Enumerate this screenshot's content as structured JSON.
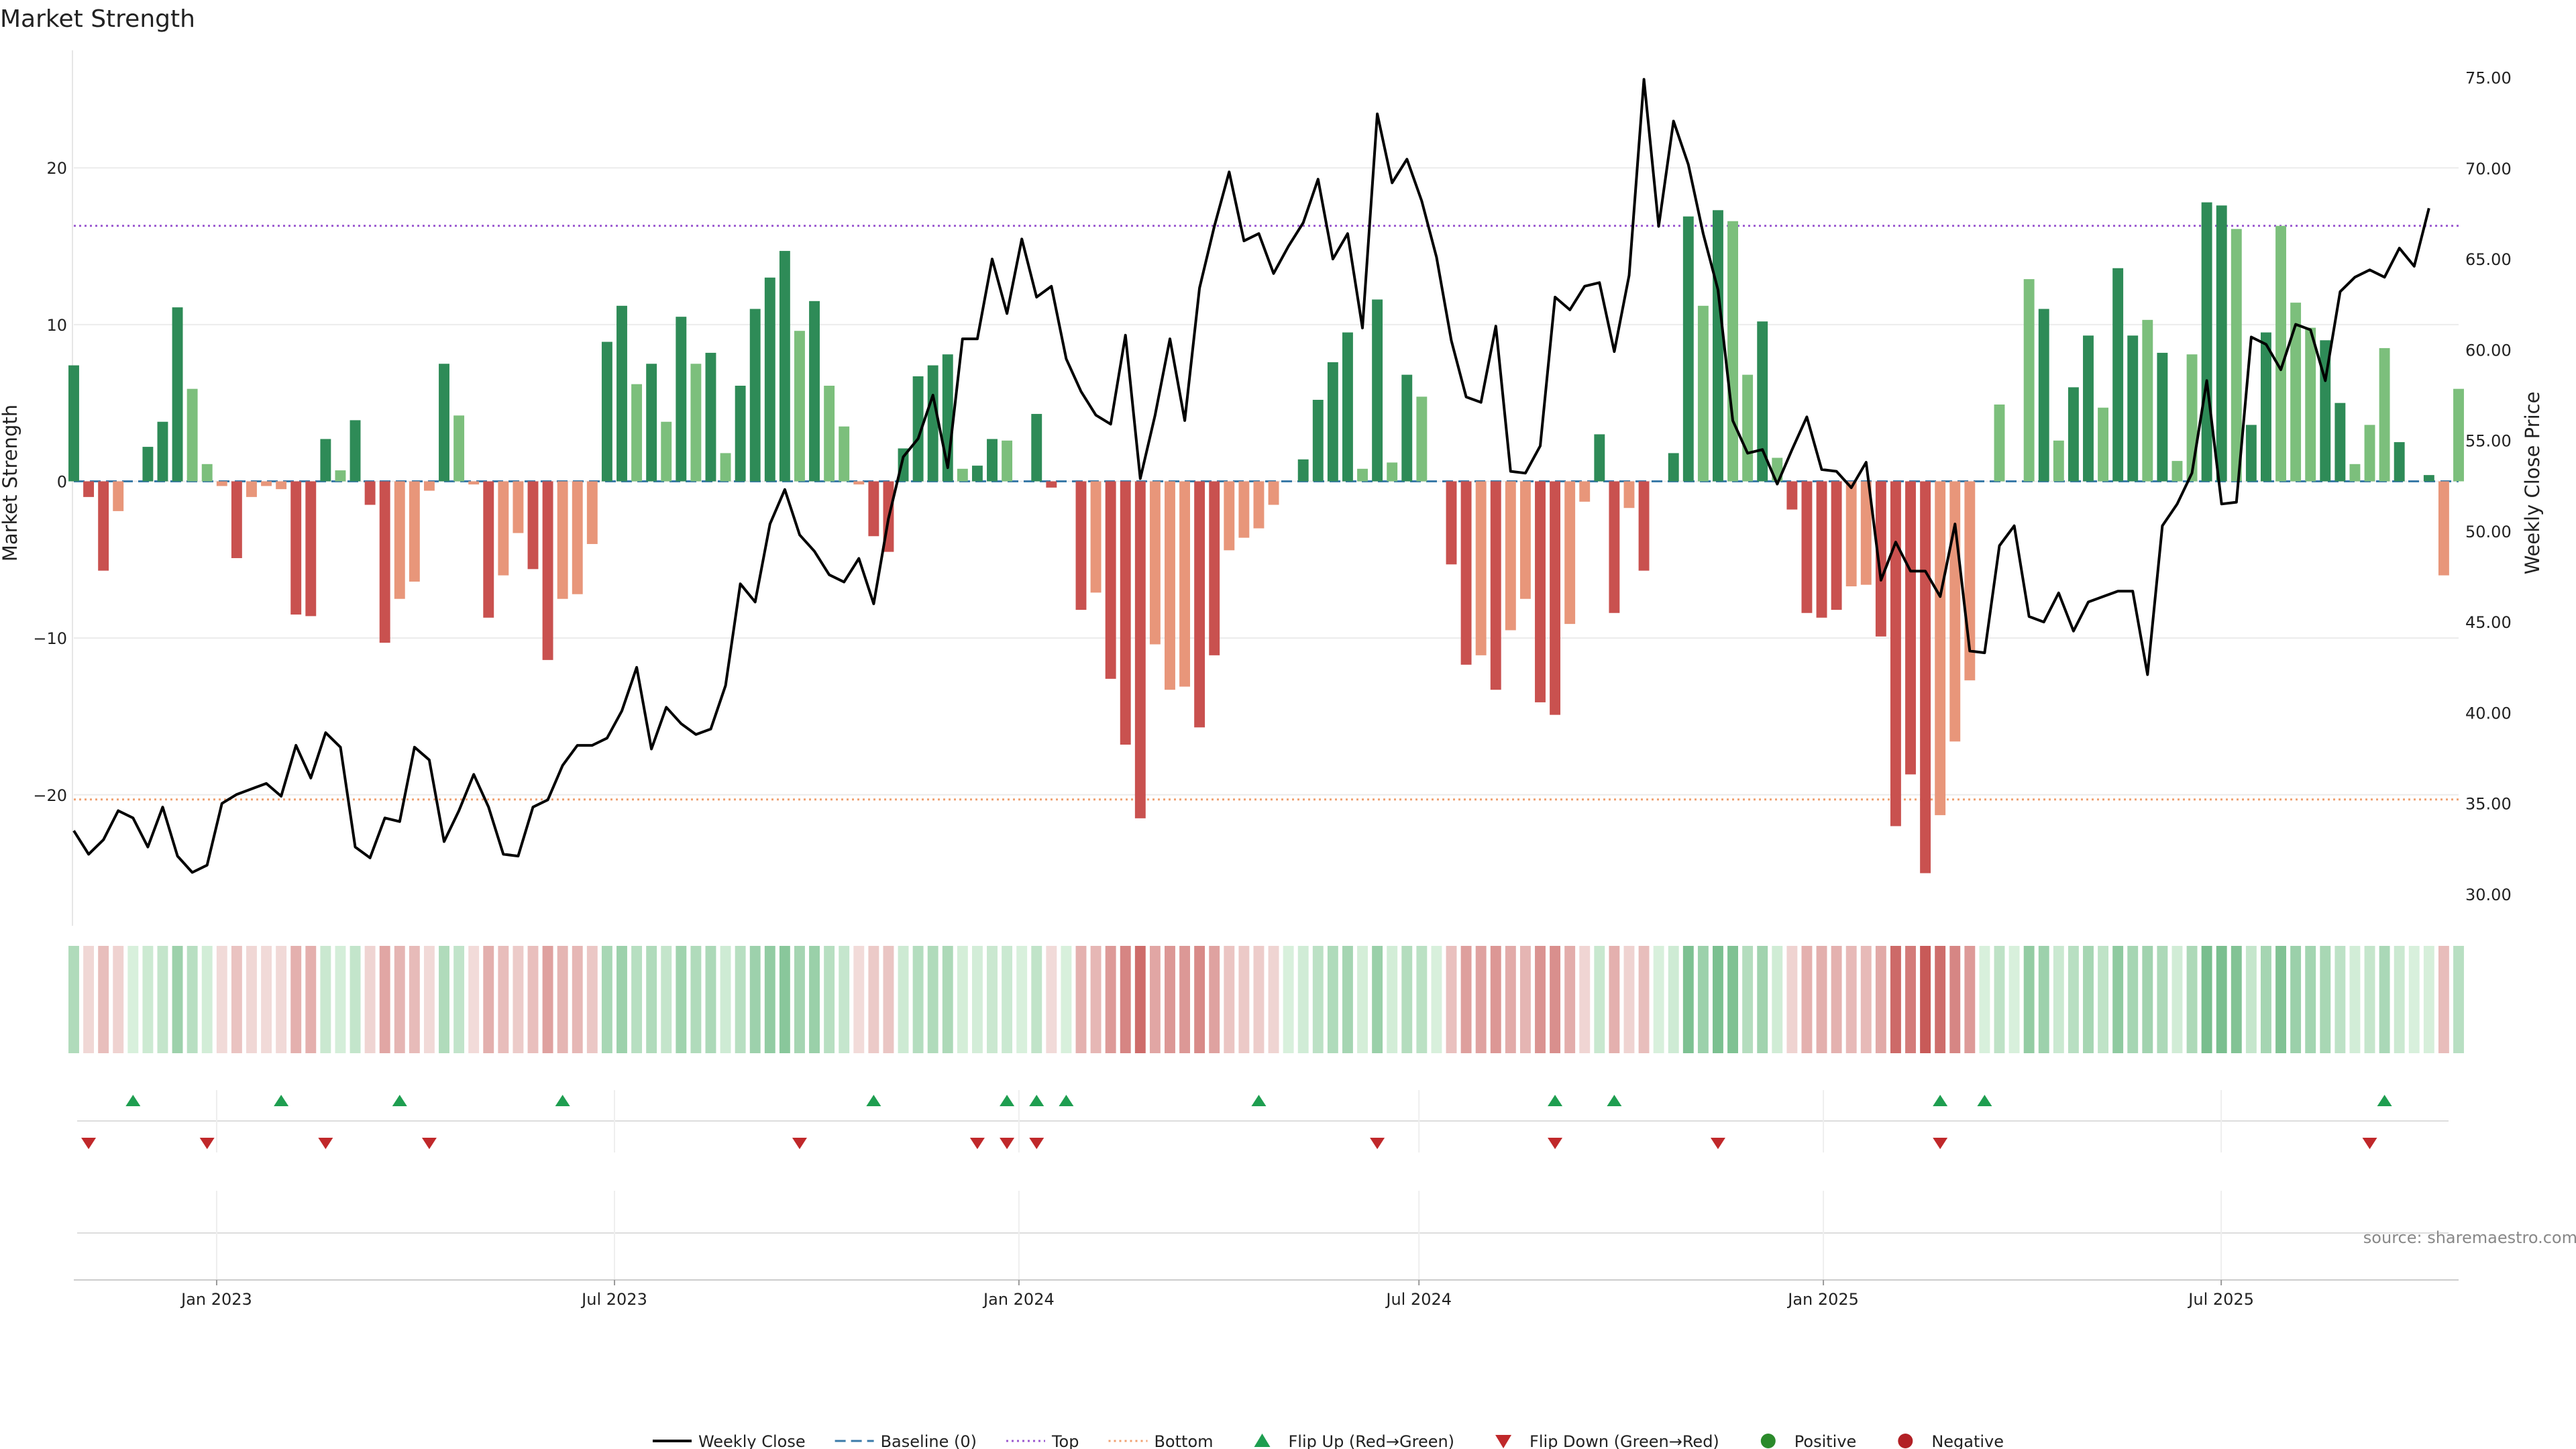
{
  "title": "Market Strength",
  "source": "source: sharemaestro.com",
  "colors": {
    "pos_dark": "#2e8b57",
    "pos_light": "#7cbf7c",
    "neg_dark": "#c9514f",
    "neg_light": "#e8967a",
    "close": "#000000",
    "top": "#9b59d0",
    "bottom": "#f0a070",
    "baseline": "#3a7aa8",
    "flip_up": "#1e9e50",
    "flip_down": "#c0282a",
    "positive": "#2b8a2b",
    "negative": "#b22025"
  },
  "chart_data": {
    "type": "bar",
    "title": "Market Strength",
    "ylabel": "Market Strength",
    "y2label": "Weekly Close Price",
    "ylim": [
      -27.5,
      27.5
    ],
    "y2lim": [
      29,
      76.5
    ],
    "yticks": [
      -20,
      -10,
      0,
      10,
      20
    ],
    "y2ticks": [
      "30.00",
      "35.00",
      "40.00",
      "45.00",
      "50.00",
      "55.00",
      "60.00",
      "65.00",
      "70.00",
      "75.00"
    ],
    "x_start": "2022-10-28",
    "x_end": "2025-10-17",
    "xticks": [
      {
        "date": "2023-01-01",
        "label": "Jan 2023"
      },
      {
        "date": "2023-07-01",
        "label": "Jul 2023"
      },
      {
        "date": "2024-01-01",
        "label": "Jan 2024"
      },
      {
        "date": "2024-07-01",
        "label": "Jul 2024"
      },
      {
        "date": "2025-01-01",
        "label": "Jan 2025"
      },
      {
        "date": "2025-07-01",
        "label": "Jul 2025"
      }
    ],
    "top_level": 16.3,
    "bottom_level": -20.3,
    "strength": [
      7.4,
      -1.0,
      -5.7,
      -1.9,
      0,
      2.2,
      3.8,
      11.1,
      5.9,
      1.1,
      -0.3,
      -4.9,
      -1.0,
      -0.3,
      -0.5,
      -8.5,
      -8.6,
      2.7,
      0.7,
      3.9,
      -1.5,
      -10.3,
      -7.5,
      -6.4,
      -0.6,
      7.5,
      4.2,
      -0.2,
      -8.7,
      -6.0,
      -3.3,
      -5.6,
      -11.4,
      -7.5,
      -7.2,
      -4.0,
      8.9,
      11.2,
      6.2,
      7.5,
      3.8,
      10.5,
      7.5,
      8.2,
      1.8,
      6.1,
      11.0,
      13.0,
      14.7,
      9.6,
      11.5,
      6.1,
      3.5,
      -0.2,
      -3.5,
      -4.5,
      2.1,
      6.7,
      7.4,
      8.1,
      0.8,
      1.0,
      2.7,
      2.6,
      0,
      4.3,
      -0.4,
      0,
      -8.2,
      -7.1,
      -12.6,
      -16.8,
      -21.5,
      -10.4,
      -13.3,
      -13.1,
      -15.7,
      -11.1,
      -4.4,
      -3.6,
      -3.0,
      -1.5,
      0,
      1.4,
      5.2,
      7.6,
      9.5,
      0.8,
      11.6,
      1.2,
      6.8,
      5.4,
      0,
      -5.3,
      -11.7,
      -11.1,
      -13.3,
      -9.5,
      -7.5,
      -14.1,
      -14.9,
      -9.1,
      -1.3,
      3.0,
      -8.4,
      -1.7,
      -5.7,
      0,
      1.8,
      16.9,
      11.2,
      17.3,
      16.6,
      6.8,
      10.2,
      1.5,
      -1.8,
      -8.4,
      -8.7,
      -8.2,
      -6.7,
      -6.6,
      -9.9,
      -22.0,
      -18.7,
      -25.0,
      -21.3,
      -16.6,
      -12.7,
      0,
      4.9,
      0,
      12.9,
      11.0,
      2.6,
      6.0,
      9.3,
      4.7,
      13.6,
      9.3,
      10.3,
      8.2,
      1.3,
      8.1,
      17.8,
      17.6,
      16.1,
      3.6,
      9.5,
      16.3,
      11.4,
      9.8,
      9.0,
      5.0,
      1.1,
      3.6,
      8.5,
      2.5,
      0,
      0.4,
      -6.0,
      5.9
    ],
    "shade": [
      1,
      1,
      1,
      0,
      1,
      1,
      1,
      1,
      0,
      0,
      0,
      1,
      0,
      0,
      0,
      1,
      1,
      1,
      0,
      1,
      1,
      1,
      0,
      0,
      0,
      1,
      0,
      0,
      1,
      0,
      0,
      1,
      1,
      0,
      0,
      0,
      1,
      1,
      0,
      1,
      0,
      1,
      0,
      1,
      0,
      1,
      1,
      1,
      1,
      0,
      1,
      0,
      0,
      0,
      1,
      1,
      1,
      1,
      1,
      1,
      0,
      1,
      1,
      0,
      0,
      1,
      1,
      0,
      1,
      0,
      1,
      1,
      1,
      0,
      0,
      0,
      1,
      1,
      0,
      0,
      0,
      0,
      0,
      1,
      1,
      1,
      1,
      0,
      1,
      0,
      1,
      0,
      0,
      1,
      1,
      0,
      1,
      0,
      0,
      1,
      1,
      0,
      0,
      1,
      1,
      0,
      1,
      0,
      1,
      1,
      0,
      1,
      0,
      0,
      1,
      0,
      1,
      1,
      1,
      1,
      0,
      0,
      1,
      1,
      1,
      1,
      0,
      0,
      0,
      0,
      0,
      1,
      0,
      1,
      0,
      1,
      1,
      0,
      1,
      1,
      0,
      1,
      0,
      0,
      1,
      1,
      0,
      1,
      1,
      0,
      0,
      0,
      1,
      1,
      0,
      0,
      0,
      1,
      0,
      1,
      0,
      0,
      1
    ],
    "close": [
      33.5,
      32.2,
      33.0,
      34.6,
      34.2,
      32.6,
      34.8,
      32.1,
      31.2,
      31.6,
      35.0,
      35.5,
      35.8,
      36.1,
      35.4,
      38.2,
      36.4,
      38.9,
      38.1,
      32.6,
      32.0,
      34.2,
      34.0,
      38.1,
      37.4,
      32.9,
      34.6,
      36.6,
      34.8,
      32.2,
      32.1,
      34.8,
      35.2,
      37.1,
      38.2,
      38.2,
      38.6,
      40.1,
      42.5,
      38.0,
      40.3,
      39.4,
      38.8,
      39.1,
      41.5,
      47.1,
      46.1,
      50.4,
      52.3,
      49.8,
      48.9,
      47.6,
      47.2,
      48.5,
      46.0,
      50.7,
      54.1,
      55.1,
      57.5,
      53.5,
      60.6,
      60.6,
      65.0,
      62.0,
      66.1,
      62.9,
      63.5,
      59.5,
      57.7,
      56.4,
      55.9,
      60.8,
      52.9,
      56.4,
      60.6,
      56.1,
      63.4,
      66.8,
      69.8,
      66.0,
      66.4,
      64.2,
      65.7,
      67.0,
      69.4,
      65.0,
      66.4,
      61.2,
      73.0,
      69.2,
      70.5,
      68.2,
      65.1,
      60.5,
      57.4,
      57.1,
      61.3,
      53.3,
      53.2,
      54.7,
      62.9,
      62.2,
      63.5,
      63.7,
      59.9,
      64.1,
      74.9,
      66.8,
      72.6,
      70.2,
      66.4,
      63.3,
      56.1,
      54.3,
      54.5,
      52.6,
      54.5,
      56.3,
      53.4,
      53.3,
      52.4,
      53.8,
      47.3,
      49.4,
      47.8,
      47.8,
      46.4,
      50.4,
      43.4,
      43.3,
      49.2,
      50.3,
      45.3,
      45.0,
      46.6,
      44.5,
      46.1,
      46.4,
      46.7,
      46.7,
      42.1,
      50.3,
      51.5,
      53.2,
      58.3,
      51.5,
      51.6,
      60.7,
      60.3,
      58.9,
      61.4,
      61.1,
      58.3,
      63.2,
      64.0,
      64.4,
      64.0,
      65.6,
      64.6,
      67.8
    ],
    "flip_up_idx": [
      4,
      14,
      22,
      33,
      54,
      63,
      65,
      67,
      80,
      100,
      104,
      126,
      129,
      156
    ],
    "flip_down_idx": [
      1,
      9,
      17,
      24,
      49,
      61,
      63,
      65,
      88,
      100,
      111,
      126,
      155
    ],
    "series": [
      {
        "name": "Weekly Close"
      },
      {
        "name": "Baseline (0)"
      },
      {
        "name": "Top"
      },
      {
        "name": "Bottom"
      },
      {
        "name": "Flip Up (Red→Green)"
      },
      {
        "name": "Flip Down (Green→Red)"
      },
      {
        "name": "Positive"
      },
      {
        "name": "Negative"
      }
    ]
  },
  "legend": [
    {
      "label": "Weekly Close",
      "marker": "line-solid",
      "color": "#000000"
    },
    {
      "label": "Baseline (0)",
      "marker": "line-dash",
      "color": "#3a7aa8"
    },
    {
      "label": "Top",
      "marker": "line-dot",
      "color": "#9b59d0"
    },
    {
      "label": "Bottom",
      "marker": "line-dot",
      "color": "#f0a070"
    },
    {
      "label": "Flip Up (Red→Green)",
      "marker": "triangle-up",
      "color": "#1e9e50"
    },
    {
      "label": "Flip Down (Green→Red)",
      "marker": "triangle-down",
      "color": "#c0282a"
    },
    {
      "label": "Positive",
      "marker": "circle",
      "color": "#2b8a2b"
    },
    {
      "label": "Negative",
      "marker": "circle",
      "color": "#b22025"
    }
  ]
}
